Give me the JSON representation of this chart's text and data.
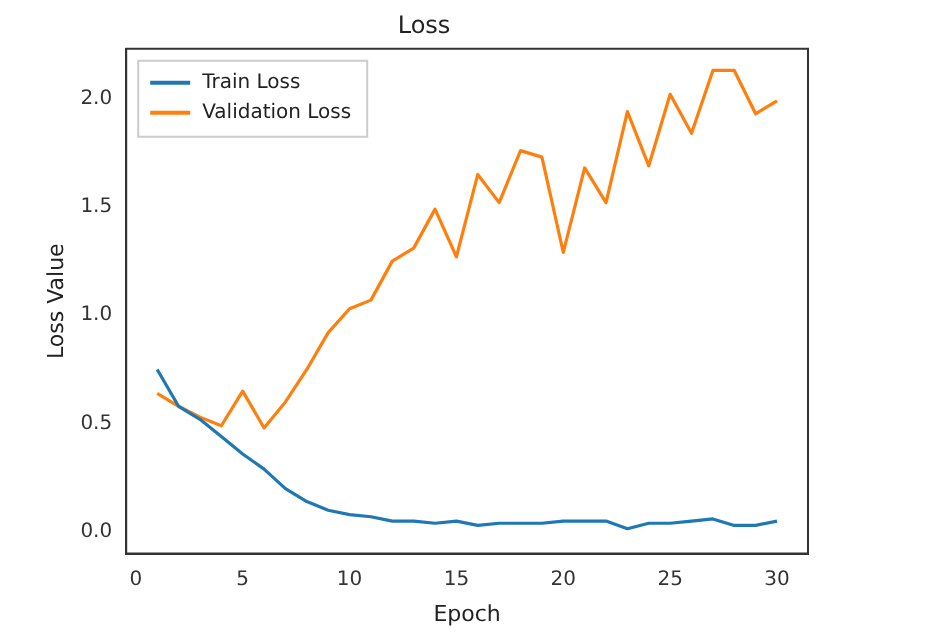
{
  "chart_data": {
    "type": "line",
    "title": "Loss",
    "xlabel": "Epoch",
    "ylabel": "Loss Value",
    "x": [
      1,
      2,
      3,
      4,
      5,
      6,
      7,
      8,
      9,
      10,
      11,
      12,
      13,
      14,
      15,
      16,
      17,
      18,
      19,
      20,
      21,
      22,
      23,
      24,
      25,
      26,
      27,
      28,
      29,
      30
    ],
    "series": [
      {
        "name": "Train Loss",
        "color": "#1f77b4",
        "values": [
          0.75,
          0.58,
          0.52,
          0.44,
          0.36,
          0.29,
          0.2,
          0.14,
          0.1,
          0.08,
          0.07,
          0.05,
          0.05,
          0.04,
          0.05,
          0.03,
          0.04,
          0.04,
          0.04,
          0.05,
          0.05,
          0.05,
          0.015,
          0.04,
          0.04,
          0.05,
          0.06,
          0.03,
          0.03,
          0.05
        ]
      },
      {
        "name": "Validation Loss",
        "color": "#ff7f0e",
        "values": [
          0.64,
          0.58,
          0.53,
          0.49,
          0.65,
          0.48,
          0.6,
          0.75,
          0.92,
          1.03,
          1.07,
          1.25,
          1.31,
          1.49,
          1.27,
          1.65,
          1.52,
          1.76,
          1.73,
          1.29,
          1.68,
          1.52,
          1.94,
          1.69,
          2.02,
          1.84,
          2.13,
          2.13,
          1.93,
          1.99
        ]
      }
    ],
    "xlim": [
      -0.45,
      31.45
    ],
    "xticks": [
      0,
      5,
      10,
      15,
      20,
      25,
      30
    ],
    "ylim": [
      -0.1,
      2.23
    ],
    "yticks": [
      {
        "value": 0,
        "label": "0.0"
      },
      {
        "value": 0.5,
        "label": "0.5"
      },
      {
        "value": 1,
        "label": "1.0"
      },
      {
        "value": 1.5,
        "label": "1.5"
      },
      {
        "value": 2,
        "label": "2.0"
      }
    ],
    "grid": false,
    "legend": "top left",
    "marker": "none",
    "line_style": "solid"
  }
}
